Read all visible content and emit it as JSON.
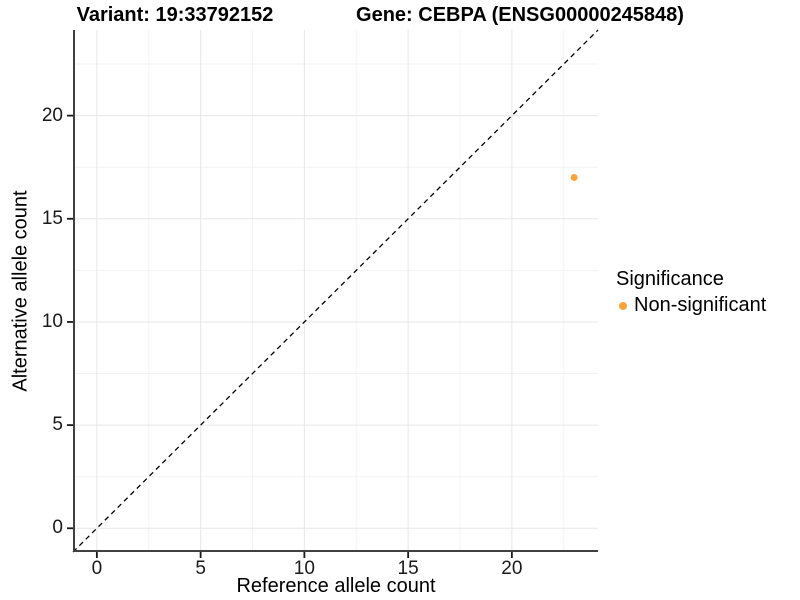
{
  "titles": {
    "variant": "Variant: 19:33792152",
    "gene": "Gene: CEBPA (ENSG00000245848)"
  },
  "chart_data": {
    "type": "scatter",
    "xlabel": "Reference allele count",
    "ylabel": "Alternative allele count",
    "xlim": [
      -1.15,
      24.15
    ],
    "ylim": [
      -1.15,
      24.15
    ],
    "x_ticks": [
      0,
      5,
      10,
      15,
      20
    ],
    "y_ticks": [
      0,
      5,
      10,
      15,
      20
    ],
    "x_minor_ticks": [
      2.5,
      7.5,
      12.5,
      17.5,
      22.5
    ],
    "y_minor_ticks": [
      2.5,
      7.5,
      12.5,
      17.5,
      22.5
    ],
    "grid": true,
    "legend_position": "right",
    "reference_line": {
      "type": "identity",
      "style": "dashed",
      "color": "#000000"
    },
    "series": [
      {
        "name": "Non-significant",
        "color": "#FAA43E",
        "points": [
          {
            "x": 23,
            "y": 17
          }
        ]
      }
    ]
  },
  "legend": {
    "title": "Significance",
    "items": [
      {
        "label": "Non-significant",
        "color": "#FAA43E"
      }
    ]
  },
  "colors": {
    "background": "#FFFFFF",
    "major_grid": "#E7E7E7",
    "minor_grid": "#F3F3F3",
    "axis_line": "#404040",
    "tick_mark": "#1a1a1a",
    "text": "#000000"
  }
}
